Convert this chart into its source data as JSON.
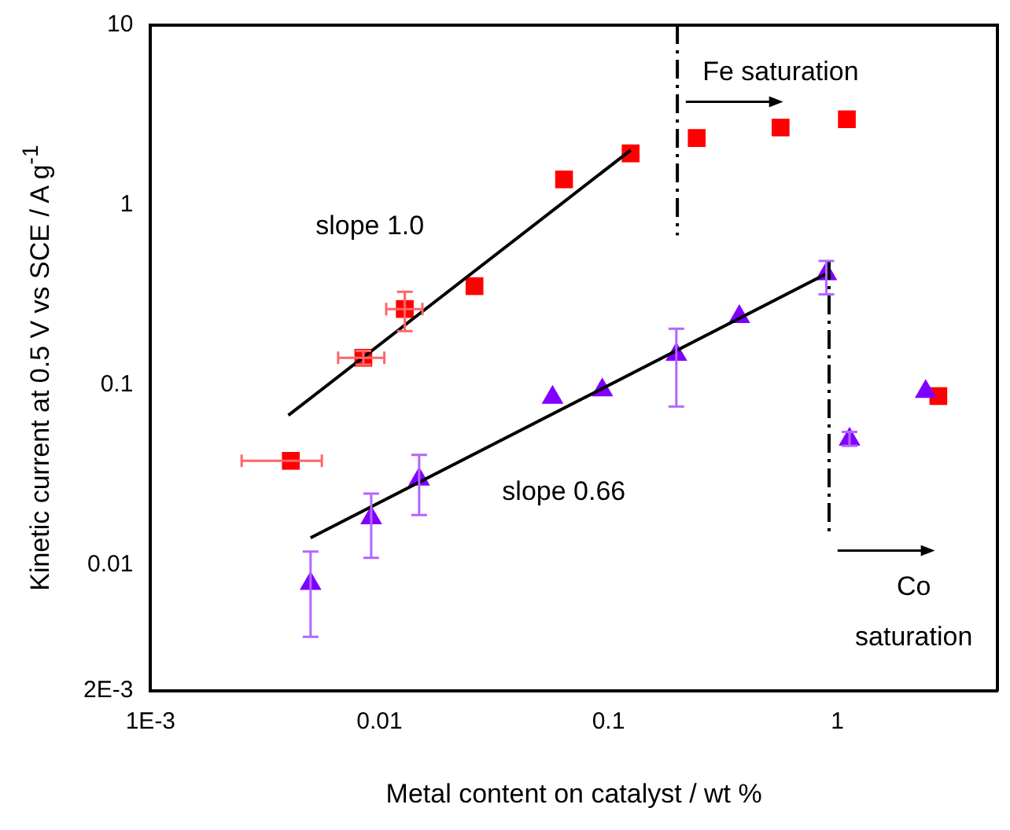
{
  "chart_data": {
    "type": "scatter",
    "xlabel": "Metal content on catalyst / wt %",
    "ylabel": "Kinetic current at 0.5 V vs SCE / A g$^{-1}$",
    "log": "xy",
    "xlim": [
      0.001,
      5
    ],
    "ylim": [
      0.002,
      10
    ],
    "xticks": [
      {
        "value": 0.001,
        "label": "1E-3"
      },
      0.01,
      0.1,
      1
    ],
    "yticks": [
      {
        "value": 0.002,
        "label": "2E-3"
      },
      0.01,
      0.1,
      1,
      10
    ],
    "grid": false,
    "legend": false,
    "annotations": [
      "slope 1.0",
      "slope 0.66",
      "Fe saturation",
      "Co saturation"
    ],
    "series": [
      {
        "marker": "square",
        "color": "#ff0000",
        "x": [
          0.0041,
          0.0085,
          0.0129,
          0.026,
          0.064,
          0.125,
          0.243,
          0.565,
          1.1,
          2.76
        ],
        "values": [
          0.038,
          0.142,
          0.265,
          0.355,
          1.39,
          1.94,
          2.36,
          2.7,
          3.0,
          0.087
        ],
        "errors": [
          null,
          [
            0.13,
            0.155
          ],
          [
            0.2,
            0.33
          ],
          null,
          null,
          null,
          null,
          null,
          null,
          null
        ],
        "xerrors": [
          [
            0.0025,
            0.0056
          ],
          [
            0.0066,
            0.0105
          ],
          [
            0.0107,
            0.0154
          ],
          null,
          null,
          null,
          null,
          null,
          null,
          null
        ]
      },
      {
        "marker": "triangle",
        "color": "#8000ff",
        "x": [
          0.005,
          0.0092,
          0.0149,
          0.057,
          0.094,
          0.198,
          0.373,
          0.895,
          1.13,
          2.43
        ],
        "values": [
          0.0079,
          0.0183,
          0.03,
          0.0855,
          0.094,
          0.148,
          0.24,
          0.415,
          0.05,
          0.092
        ],
        "errors": [
          [
            0.004,
            0.0119
          ],
          [
            0.011,
            0.025
          ],
          [
            0.019,
            0.041
          ],
          null,
          null,
          [
            0.076,
            0.206
          ],
          null,
          [
            0.32,
            0.49
          ],
          [
            0.046,
            0.055
          ],
          null
        ]
      },
      {
        "type": "line",
        "marker": "none",
        "color": "#000000",
        "line_style": "solid",
        "x": [
          0.004,
          0.125
        ],
        "values": [
          0.068,
          2.02
        ]
      },
      {
        "type": "line",
        "marker": "none",
        "color": "#000000",
        "line_style": "solid",
        "x": [
          0.005,
          0.91
        ],
        "values": [
          0.0142,
          0.42
        ]
      },
      {
        "type": "line",
        "marker": "none",
        "color": "#000000",
        "line_style": "dashed",
        "x": [
          0.2,
          0.2
        ],
        "values": [
          10,
          0.68
        ]
      },
      {
        "type": "line",
        "marker": "none",
        "color": "#000000",
        "line_style": "dashed",
        "x": [
          0.92,
          0.92
        ],
        "values": [
          0.49,
          0.0148
        ]
      }
    ]
  }
}
